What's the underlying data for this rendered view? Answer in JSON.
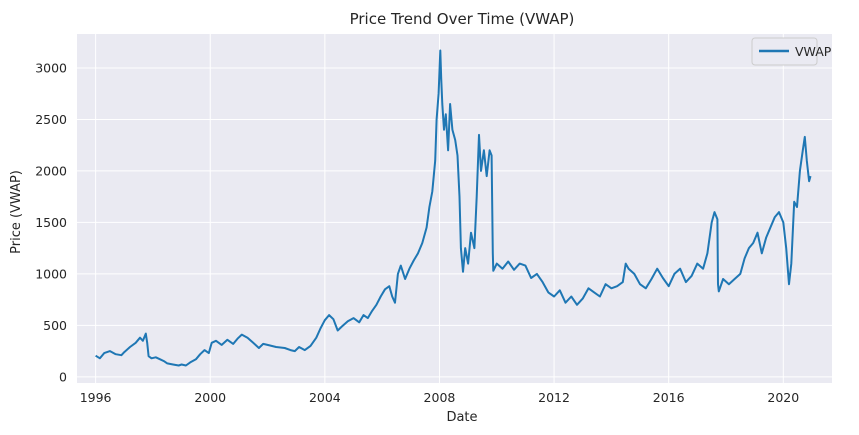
{
  "chart_data": {
    "type": "line",
    "title": "Price Trend Over Time (VWAP)",
    "xlabel": "Date",
    "ylabel": "Price (VWAP)",
    "xlim": [
      1995.35,
      2021.7
    ],
    "ylim": [
      -60,
      3330
    ],
    "x_ticks": [
      {
        "value": 1996,
        "label": "1996"
      },
      {
        "value": 2000,
        "label": "2000"
      },
      {
        "value": 2004,
        "label": "2004"
      },
      {
        "value": 2008,
        "label": "2008"
      },
      {
        "value": 2012,
        "label": "2012"
      },
      {
        "value": 2016,
        "label": "2016"
      },
      {
        "value": 2020,
        "label": "2020"
      }
    ],
    "y_ticks": [
      {
        "value": 0,
        "label": "0"
      },
      {
        "value": 500,
        "label": "500"
      },
      {
        "value": 1000,
        "label": "1000"
      },
      {
        "value": 1500,
        "label": "1500"
      },
      {
        "value": 2000,
        "label": "2000"
      },
      {
        "value": 2500,
        "label": "2500"
      },
      {
        "value": 3000,
        "label": "3000"
      }
    ],
    "grid": true,
    "legend_position": "top-right",
    "series": [
      {
        "name": "VWAP",
        "color": "#1f77b4",
        "points": [
          [
            1996.0,
            205
          ],
          [
            1996.15,
            180
          ],
          [
            1996.3,
            230
          ],
          [
            1996.5,
            250
          ],
          [
            1996.7,
            220
          ],
          [
            1996.9,
            210
          ],
          [
            1997.0,
            240
          ],
          [
            1997.2,
            290
          ],
          [
            1997.4,
            330
          ],
          [
            1997.55,
            380
          ],
          [
            1997.65,
            350
          ],
          [
            1997.75,
            420
          ],
          [
            1997.8,
            330
          ],
          [
            1997.85,
            200
          ],
          [
            1997.95,
            180
          ],
          [
            1998.1,
            190
          ],
          [
            1998.25,
            170
          ],
          [
            1998.4,
            150
          ],
          [
            1998.5,
            130
          ],
          [
            1998.7,
            120
          ],
          [
            1998.9,
            110
          ],
          [
            1999.0,
            120
          ],
          [
            1999.15,
            110
          ],
          [
            1999.3,
            140
          ],
          [
            1999.5,
            170
          ],
          [
            1999.65,
            220
          ],
          [
            1999.8,
            260
          ],
          [
            1999.95,
            230
          ],
          [
            2000.05,
            330
          ],
          [
            2000.2,
            350
          ],
          [
            2000.4,
            310
          ],
          [
            2000.6,
            360
          ],
          [
            2000.8,
            320
          ],
          [
            2000.95,
            370
          ],
          [
            2001.1,
            410
          ],
          [
            2001.3,
            380
          ],
          [
            2001.5,
            330
          ],
          [
            2001.7,
            280
          ],
          [
            2001.85,
            320
          ],
          [
            2002.0,
            310
          ],
          [
            2002.3,
            290
          ],
          [
            2002.6,
            280
          ],
          [
            2002.8,
            260
          ],
          [
            2002.95,
            250
          ],
          [
            2003.1,
            290
          ],
          [
            2003.3,
            260
          ],
          [
            2003.5,
            300
          ],
          [
            2003.7,
            380
          ],
          [
            2003.85,
            470
          ],
          [
            2004.0,
            550
          ],
          [
            2004.15,
            600
          ],
          [
            2004.3,
            560
          ],
          [
            2004.45,
            450
          ],
          [
            2004.6,
            490
          ],
          [
            2004.8,
            540
          ],
          [
            2005.0,
            570
          ],
          [
            2005.2,
            530
          ],
          [
            2005.35,
            600
          ],
          [
            2005.5,
            570
          ],
          [
            2005.65,
            640
          ],
          [
            2005.8,
            700
          ],
          [
            2005.95,
            780
          ],
          [
            2006.1,
            850
          ],
          [
            2006.25,
            880
          ],
          [
            2006.35,
            780
          ],
          [
            2006.45,
            720
          ],
          [
            2006.55,
            1000
          ],
          [
            2006.65,
            1080
          ],
          [
            2006.8,
            950
          ],
          [
            2006.95,
            1050
          ],
          [
            2007.1,
            1130
          ],
          [
            2007.25,
            1200
          ],
          [
            2007.4,
            1300
          ],
          [
            2007.55,
            1450
          ],
          [
            2007.65,
            1650
          ],
          [
            2007.75,
            1800
          ],
          [
            2007.85,
            2100
          ],
          [
            2007.9,
            2500
          ],
          [
            2007.97,
            2750
          ],
          [
            2008.03,
            3170
          ],
          [
            2008.06,
            2900
          ],
          [
            2008.1,
            2650
          ],
          [
            2008.16,
            2400
          ],
          [
            2008.22,
            2550
          ],
          [
            2008.3,
            2200
          ],
          [
            2008.37,
            2650
          ],
          [
            2008.45,
            2400
          ],
          [
            2008.55,
            2300
          ],
          [
            2008.63,
            2150
          ],
          [
            2008.7,
            1750
          ],
          [
            2008.75,
            1250
          ],
          [
            2008.82,
            1020
          ],
          [
            2008.9,
            1250
          ],
          [
            2009.0,
            1100
          ],
          [
            2009.1,
            1400
          ],
          [
            2009.22,
            1250
          ],
          [
            2009.3,
            1750
          ],
          [
            2009.38,
            2350
          ],
          [
            2009.45,
            2000
          ],
          [
            2009.55,
            2200
          ],
          [
            2009.65,
            1950
          ],
          [
            2009.75,
            2200
          ],
          [
            2009.82,
            2150
          ],
          [
            2009.86,
            1200
          ],
          [
            2009.88,
            1030
          ],
          [
            2010.0,
            1100
          ],
          [
            2010.2,
            1050
          ],
          [
            2010.4,
            1120
          ],
          [
            2010.6,
            1040
          ],
          [
            2010.8,
            1100
          ],
          [
            2011.0,
            1080
          ],
          [
            2011.2,
            960
          ],
          [
            2011.4,
            1000
          ],
          [
            2011.6,
            920
          ],
          [
            2011.8,
            820
          ],
          [
            2012.0,
            780
          ],
          [
            2012.2,
            840
          ],
          [
            2012.4,
            720
          ],
          [
            2012.6,
            780
          ],
          [
            2012.8,
            700
          ],
          [
            2013.0,
            760
          ],
          [
            2013.2,
            860
          ],
          [
            2013.4,
            820
          ],
          [
            2013.6,
            780
          ],
          [
            2013.8,
            900
          ],
          [
            2014.0,
            860
          ],
          [
            2014.2,
            880
          ],
          [
            2014.4,
            920
          ],
          [
            2014.5,
            1100
          ],
          [
            2014.6,
            1050
          ],
          [
            2014.8,
            1000
          ],
          [
            2015.0,
            900
          ],
          [
            2015.2,
            860
          ],
          [
            2015.4,
            950
          ],
          [
            2015.6,
            1050
          ],
          [
            2015.8,
            960
          ],
          [
            2016.0,
            880
          ],
          [
            2016.2,
            1000
          ],
          [
            2016.4,
            1050
          ],
          [
            2016.6,
            920
          ],
          [
            2016.8,
            980
          ],
          [
            2017.0,
            1100
          ],
          [
            2017.2,
            1050
          ],
          [
            2017.35,
            1200
          ],
          [
            2017.5,
            1500
          ],
          [
            2017.6,
            1600
          ],
          [
            2017.7,
            1530
          ],
          [
            2017.72,
            900
          ],
          [
            2017.75,
            830
          ],
          [
            2017.9,
            950
          ],
          [
            2018.1,
            900
          ],
          [
            2018.3,
            950
          ],
          [
            2018.5,
            1000
          ],
          [
            2018.65,
            1150
          ],
          [
            2018.8,
            1250
          ],
          [
            2018.95,
            1300
          ],
          [
            2019.1,
            1400
          ],
          [
            2019.25,
            1200
          ],
          [
            2019.4,
            1350
          ],
          [
            2019.55,
            1450
          ],
          [
            2019.7,
            1550
          ],
          [
            2019.85,
            1600
          ],
          [
            2020.0,
            1500
          ],
          [
            2020.1,
            1250
          ],
          [
            2020.2,
            900
          ],
          [
            2020.28,
            1100
          ],
          [
            2020.38,
            1700
          ],
          [
            2020.48,
            1650
          ],
          [
            2020.58,
            2000
          ],
          [
            2020.68,
            2200
          ],
          [
            2020.75,
            2330
          ],
          [
            2020.82,
            2100
          ],
          [
            2020.9,
            1900
          ],
          [
            2020.95,
            1950
          ]
        ]
      }
    ]
  }
}
